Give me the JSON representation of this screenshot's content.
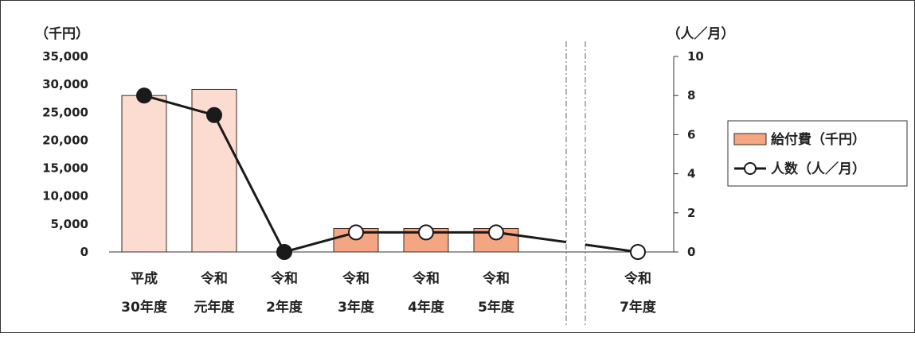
{
  "chart_data": {
    "type": "bar",
    "categories": [
      [
        "平成",
        "30年度"
      ],
      [
        "令和",
        "元年度"
      ],
      [
        "令和",
        "2年度"
      ],
      [
        "令和",
        "3年度"
      ],
      [
        "令和",
        "4年度"
      ],
      [
        "令和",
        "5年度"
      ],
      [
        "",
        ""
      ],
      [
        "令和",
        "7年度"
      ]
    ],
    "series": [
      {
        "name": "給付費（千円）",
        "type": "bar",
        "axis": "left",
        "values": [
          28000,
          29100,
          0,
          4200,
          4200,
          4200,
          null,
          0
        ],
        "colors": [
          "#fcdcd0",
          "#fcdcd0",
          "#fcdcd0",
          "#f4a582",
          "#f4a582",
          "#f4a582",
          null,
          "#f4a582"
        ]
      },
      {
        "name": "人数（人／月）",
        "type": "line",
        "axis": "right",
        "values": [
          8,
          7,
          0,
          1,
          1,
          1,
          null,
          0
        ],
        "filled": [
          true,
          true,
          true,
          false,
          false,
          false,
          null,
          false
        ]
      }
    ],
    "y_left": {
      "unit_label": "（千円）",
      "range": [
        0,
        35000
      ],
      "ticks": [
        "0",
        "5,000",
        "10,000",
        "15,000",
        "20,000",
        "25,000",
        "30,000",
        "35,000"
      ]
    },
    "y_right": {
      "unit_label": "（人／月）",
      "range": [
        0,
        10
      ],
      "ticks": [
        "0",
        "2",
        "4",
        "6",
        "8",
        "10"
      ]
    },
    "legend_position": "right",
    "axis_break": "between 5年度 and 7年度",
    "colors": {
      "bar_light": "#fcdcd0",
      "bar_dark": "#f4a582",
      "bar_stroke": "#3a2a20",
      "line": "#1a1a1a",
      "frame": "#333333"
    }
  }
}
